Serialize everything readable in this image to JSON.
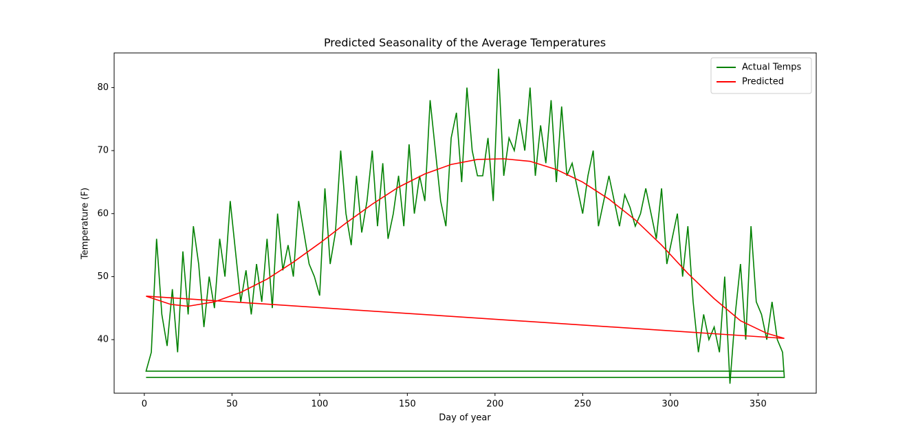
{
  "chart_data": {
    "type": "line",
    "title": "Predicted Seasonality of the Average Temperatures",
    "x_label": "Day of year",
    "y_label": "Temperature (F)",
    "xlim": [
      -17.2,
      383.2
    ],
    "ylim": [
      31.5,
      85.5
    ],
    "xticks": [
      0,
      50,
      100,
      150,
      200,
      250,
      300,
      350
    ],
    "yticks": [
      40,
      50,
      60,
      70,
      80
    ],
    "legend": "upper right",
    "series": [
      {
        "name": "Actual Temps",
        "color": "#008000",
        "x": [
          365,
          1,
          4,
          7,
          10,
          13,
          16,
          19,
          22,
          25,
          28,
          31,
          34,
          37,
          40,
          43,
          46,
          49,
          52,
          55,
          58,
          61,
          64,
          67,
          70,
          73,
          76,
          79,
          82,
          85,
          88,
          91,
          94,
          97,
          100,
          103,
          106,
          109,
          112,
          115,
          118,
          121,
          124,
          127,
          130,
          133,
          136,
          139,
          142,
          145,
          148,
          151,
          154,
          157,
          160,
          163,
          166,
          169,
          172,
          175,
          178,
          181,
          184,
          187,
          190,
          193,
          196,
          199,
          202,
          205,
          208,
          211,
          214,
          217,
          220,
          223,
          226,
          229,
          232,
          235,
          238,
          241,
          244,
          247,
          250,
          253,
          256,
          259,
          262,
          265,
          268,
          271,
          274,
          277,
          280,
          283,
          286,
          289,
          292,
          295,
          298,
          301,
          304,
          307,
          310,
          313,
          316,
          319,
          322,
          325,
          328,
          331,
          334,
          337,
          340,
          343,
          346,
          349,
          352,
          355,
          358,
          361,
          364,
          365,
          1
        ],
        "values": [
          35,
          35,
          38,
          56,
          44,
          39,
          48,
          38,
          54,
          44,
          58,
          52,
          42,
          50,
          45,
          56,
          50,
          62,
          54,
          46,
          51,
          44,
          52,
          46,
          56,
          45,
          60,
          51,
          55,
          50,
          62,
          57,
          52,
          50,
          47,
          64,
          52,
          57,
          70,
          60,
          55,
          66,
          57,
          62,
          70,
          58,
          68,
          56,
          60,
          66,
          58,
          71,
          60,
          66,
          62,
          78,
          70,
          62,
          58,
          72,
          76,
          65,
          80,
          70,
          66,
          66,
          72,
          62,
          83,
          66,
          72,
          70,
          75,
          70,
          80,
          66,
          74,
          68,
          78,
          65,
          77,
          66,
          68,
          64,
          60,
          66,
          70,
          58,
          62,
          66,
          62,
          58,
          63,
          61,
          58,
          60,
          64,
          60,
          56,
          64,
          52,
          56,
          60,
          50,
          58,
          46,
          38,
          44,
          40,
          42,
          38,
          50,
          33,
          44,
          52,
          40,
          58,
          46,
          44,
          40,
          46,
          40,
          38,
          34,
          34
        ]
      },
      {
        "name": "Predicted",
        "color": "#ff0000",
        "x": [
          1,
          15,
          25,
          40,
          55,
          70,
          85,
          100,
          115,
          130,
          145,
          160,
          175,
          190,
          205,
          220,
          235,
          250,
          265,
          280,
          295,
          310,
          325,
          340,
          355,
          365,
          1
        ],
        "values": [
          46.9,
          45.6,
          45.3,
          46.0,
          47.5,
          49.6,
          52.3,
          55.3,
          58.5,
          61.5,
          64.2,
          66.3,
          67.8,
          68.6,
          68.7,
          68.3,
          67.0,
          65.0,
          62.3,
          59.0,
          55.0,
          50.5,
          46.5,
          43.0,
          41.0,
          40.2,
          46.9
        ]
      }
    ]
  }
}
